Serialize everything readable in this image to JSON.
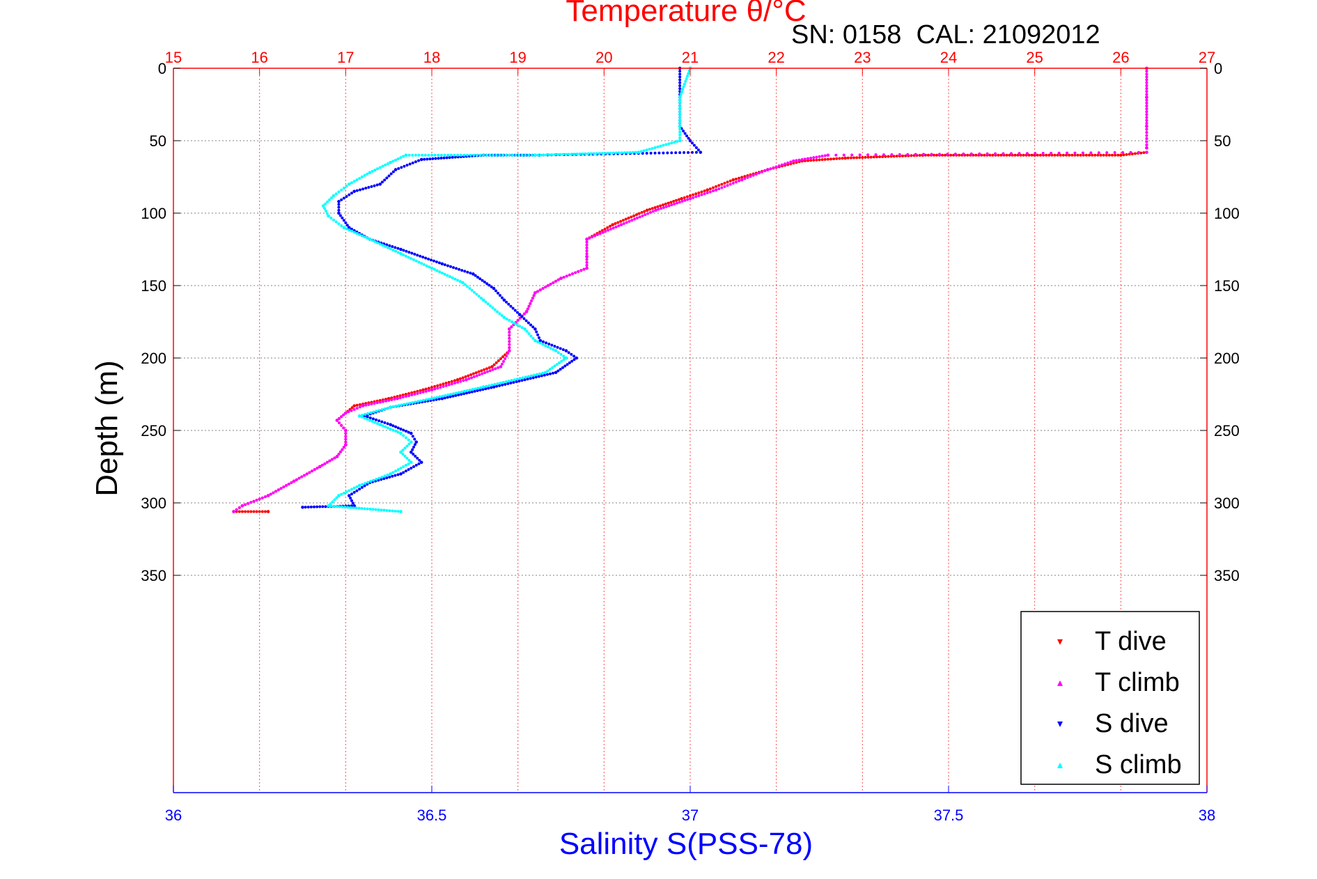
{
  "chart_data": {
    "type": "scatter",
    "title": "Temperature θ/°C",
    "subtitle": "SN: 0158  CAL: 21092012",
    "xlabel": "Salinity S(PSS-78)",
    "ylabel": "Depth (m)",
    "y_axis": {
      "range": [
        0,
        500
      ],
      "ticks": [
        0,
        50,
        100,
        150,
        200,
        250,
        300,
        350
      ],
      "reversed": true
    },
    "x_axis_top": {
      "label": "Temperature θ/°C",
      "range": [
        15,
        27
      ],
      "ticks": [
        15,
        16,
        17,
        18,
        19,
        20,
        21,
        22,
        23,
        24,
        25,
        26,
        27
      ]
    },
    "x_axis_bottom": {
      "label": "Salinity S(PSS-78)",
      "range": [
        36,
        38
      ],
      "ticks": [
        "36",
        "36.5",
        "37",
        "37.5",
        "38"
      ]
    },
    "grid": true,
    "legend_position": "bottom-right",
    "colors": {
      "title": "#ff0000",
      "temperature_axis": "#ff0000",
      "salinity_axis": "#0000ff",
      "grid": "#808080"
    },
    "series": [
      {
        "name": "T dive",
        "axis": "temperature",
        "color": "#ff0000",
        "marker": "▾",
        "points": [
          [
            26.3,
            0
          ],
          [
            26.3,
            20
          ],
          [
            26.3,
            40
          ],
          [
            26.3,
            55
          ],
          [
            26.3,
            58
          ],
          [
            26.0,
            60
          ],
          [
            25.0,
            60
          ],
          [
            23.7,
            60
          ],
          [
            22.8,
            62
          ],
          [
            22.3,
            64
          ],
          [
            21.9,
            70
          ],
          [
            21.5,
            77
          ],
          [
            21.2,
            84
          ],
          [
            20.9,
            90
          ],
          [
            20.5,
            98
          ],
          [
            20.1,
            108
          ],
          [
            19.8,
            118
          ],
          [
            19.8,
            130
          ],
          [
            19.8,
            138
          ],
          [
            19.5,
            145
          ],
          [
            19.2,
            155
          ],
          [
            19.1,
            168
          ],
          [
            18.9,
            180
          ],
          [
            18.9,
            195
          ],
          [
            18.7,
            206
          ],
          [
            18.3,
            215
          ],
          [
            17.9,
            222
          ],
          [
            17.5,
            228
          ],
          [
            17.1,
            233
          ],
          [
            17.0,
            238
          ],
          [
            16.9,
            243
          ],
          [
            17.0,
            250
          ],
          [
            17.0,
            260
          ],
          [
            16.9,
            268
          ],
          [
            16.7,
            275
          ],
          [
            16.4,
            285
          ],
          [
            16.1,
            295
          ],
          [
            15.8,
            302
          ],
          [
            15.7,
            306
          ],
          [
            16.1,
            306
          ]
        ]
      },
      {
        "name": "T climb",
        "axis": "temperature",
        "color": "#ff00ff",
        "marker": "▴",
        "points": [
          [
            26.3,
            0
          ],
          [
            26.3,
            20
          ],
          [
            26.3,
            40
          ],
          [
            26.3,
            55
          ],
          [
            26.3,
            58
          ],
          [
            22.6,
            60
          ],
          [
            22.2,
            64
          ],
          [
            21.9,
            70
          ],
          [
            21.6,
            77
          ],
          [
            21.3,
            84
          ],
          [
            21.0,
            90
          ],
          [
            20.6,
            98
          ],
          [
            20.2,
            108
          ],
          [
            19.8,
            118
          ],
          [
            19.8,
            130
          ],
          [
            19.8,
            138
          ],
          [
            19.5,
            145
          ],
          [
            19.2,
            155
          ],
          [
            19.1,
            168
          ],
          [
            18.9,
            180
          ],
          [
            18.9,
            195
          ],
          [
            18.8,
            206
          ],
          [
            18.4,
            215
          ],
          [
            18.0,
            222
          ],
          [
            17.6,
            228
          ],
          [
            17.2,
            233
          ],
          [
            17.0,
            238
          ],
          [
            16.9,
            243
          ],
          [
            17.0,
            250
          ],
          [
            17.0,
            260
          ],
          [
            16.9,
            268
          ],
          [
            16.7,
            275
          ],
          [
            16.4,
            285
          ],
          [
            16.1,
            295
          ],
          [
            15.8,
            302
          ],
          [
            15.7,
            306
          ]
        ]
      },
      {
        "name": "S dive",
        "axis": "salinity",
        "color": "#0000ff",
        "marker": "▾",
        "points": [
          [
            36.98,
            0
          ],
          [
            36.98,
            20
          ],
          [
            36.98,
            40
          ],
          [
            37.0,
            50
          ],
          [
            37.02,
            58
          ],
          [
            36.7,
            60
          ],
          [
            36.6,
            60
          ],
          [
            36.48,
            63
          ],
          [
            36.43,
            70
          ],
          [
            36.4,
            80
          ],
          [
            36.35,
            85
          ],
          [
            36.32,
            92
          ],
          [
            36.32,
            100
          ],
          [
            36.34,
            110
          ],
          [
            36.38,
            118
          ],
          [
            36.44,
            125
          ],
          [
            36.52,
            135
          ],
          [
            36.58,
            142
          ],
          [
            36.62,
            152
          ],
          [
            36.64,
            160
          ],
          [
            36.67,
            170
          ],
          [
            36.7,
            180
          ],
          [
            36.71,
            188
          ],
          [
            36.76,
            195
          ],
          [
            36.78,
            200
          ],
          [
            36.74,
            210
          ],
          [
            36.62,
            220
          ],
          [
            36.52,
            228
          ],
          [
            36.42,
            234
          ],
          [
            36.37,
            240
          ],
          [
            36.42,
            246
          ],
          [
            36.46,
            252
          ],
          [
            36.47,
            258
          ],
          [
            36.46,
            265
          ],
          [
            36.48,
            272
          ],
          [
            36.44,
            280
          ],
          [
            36.38,
            286
          ],
          [
            36.34,
            295
          ],
          [
            36.35,
            302
          ],
          [
            36.25,
            303
          ]
        ]
      },
      {
        "name": "S climb",
        "axis": "salinity",
        "color": "#00ffff",
        "marker": "▴",
        "points": [
          [
            37.0,
            0
          ],
          [
            36.98,
            20
          ],
          [
            36.98,
            40
          ],
          [
            36.98,
            50
          ],
          [
            36.9,
            58
          ],
          [
            36.7,
            60
          ],
          [
            36.45,
            60
          ],
          [
            36.42,
            65
          ],
          [
            36.38,
            72
          ],
          [
            36.34,
            80
          ],
          [
            36.31,
            88
          ],
          [
            36.29,
            95
          ],
          [
            36.3,
            102
          ],
          [
            36.33,
            110
          ],
          [
            36.38,
            118
          ],
          [
            36.44,
            128
          ],
          [
            36.5,
            138
          ],
          [
            36.56,
            148
          ],
          [
            36.6,
            160
          ],
          [
            36.64,
            172
          ],
          [
            36.68,
            180
          ],
          [
            36.7,
            188
          ],
          [
            36.74,
            195
          ],
          [
            36.76,
            200
          ],
          [
            36.72,
            210
          ],
          [
            36.6,
            220
          ],
          [
            36.5,
            228
          ],
          [
            36.42,
            234
          ],
          [
            36.36,
            240
          ],
          [
            36.4,
            246
          ],
          [
            36.44,
            252
          ],
          [
            36.46,
            258
          ],
          [
            36.44,
            265
          ],
          [
            36.46,
            272
          ],
          [
            36.42,
            280
          ],
          [
            36.36,
            288
          ],
          [
            36.32,
            295
          ],
          [
            36.3,
            302
          ],
          [
            36.44,
            306
          ]
        ]
      }
    ]
  }
}
